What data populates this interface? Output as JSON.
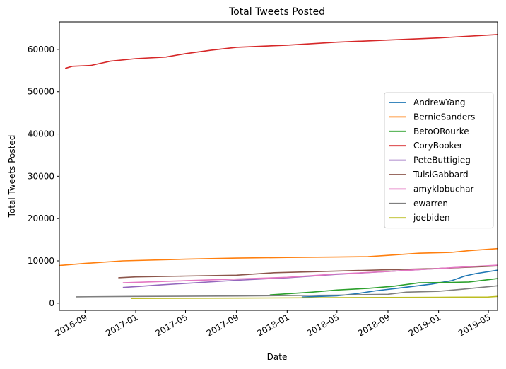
{
  "chart_data": {
    "type": "line",
    "title": "Total Tweets Posted",
    "xlabel": "Date",
    "ylabel": "Total Tweets Posted",
    "x_range": [
      "2016-07-01",
      "2019-05-23"
    ],
    "ylim": [
      -1700,
      66500
    ],
    "grid": false,
    "legend_position": "center-right",
    "x_ticks": [
      {
        "date": "2016-09-01",
        "label": "2016-09"
      },
      {
        "date": "2017-01-01",
        "label": "2017-01"
      },
      {
        "date": "2017-05-01",
        "label": "2017-05"
      },
      {
        "date": "2017-09-01",
        "label": "2017-09"
      },
      {
        "date": "2018-01-01",
        "label": "2018-01"
      },
      {
        "date": "2018-05-01",
        "label": "2018-05"
      },
      {
        "date": "2018-09-01",
        "label": "2018-09"
      },
      {
        "date": "2019-01-01",
        "label": "2019-01"
      },
      {
        "date": "2019-05-01",
        "label": "2019-05"
      }
    ],
    "y_ticks": [
      0,
      10000,
      20000,
      30000,
      40000,
      50000,
      60000
    ],
    "series": [
      {
        "name": "AndrewYang",
        "color": "#1f77b4",
        "points": [
          [
            "2018-02-05",
            1450
          ],
          [
            "2018-05-01",
            1750
          ],
          [
            "2018-06-15",
            2200
          ],
          [
            "2018-08-01",
            2900
          ],
          [
            "2018-10-01",
            3600
          ],
          [
            "2018-12-15",
            4500
          ],
          [
            "2019-02-01",
            5300
          ],
          [
            "2019-03-05",
            6400
          ],
          [
            "2019-04-01",
            7000
          ],
          [
            "2019-05-23",
            7800
          ]
        ]
      },
      {
        "name": "BernieSanders",
        "color": "#ff7f0e",
        "points": [
          [
            "2016-07-01",
            8900
          ],
          [
            "2016-09-01",
            9400
          ],
          [
            "2016-12-01",
            10000
          ],
          [
            "2017-05-01",
            10400
          ],
          [
            "2017-09-01",
            10650
          ],
          [
            "2018-01-01",
            10800
          ],
          [
            "2018-05-01",
            10900
          ],
          [
            "2018-07-15",
            11000
          ],
          [
            "2018-09-01",
            11300
          ],
          [
            "2018-11-15",
            11800
          ],
          [
            "2019-02-01",
            12000
          ],
          [
            "2019-03-15",
            12400
          ],
          [
            "2019-05-23",
            12900
          ]
        ]
      },
      {
        "name": "BetoORourke",
        "color": "#2ca02c",
        "points": [
          [
            "2017-11-20",
            1950
          ],
          [
            "2018-03-01",
            2600
          ],
          [
            "2018-05-01",
            3100
          ],
          [
            "2018-07-15",
            3500
          ],
          [
            "2018-09-15",
            4000
          ],
          [
            "2018-11-15",
            4800
          ],
          [
            "2019-02-01",
            4900
          ],
          [
            "2019-03-15",
            5000
          ],
          [
            "2019-05-23",
            5800
          ]
        ]
      },
      {
        "name": "CoryBooker",
        "color": "#d62728",
        "points": [
          [
            "2016-07-15",
            55500
          ],
          [
            "2016-08-01",
            56000
          ],
          [
            "2016-09-15",
            56200
          ],
          [
            "2016-11-01",
            57200
          ],
          [
            "2017-01-01",
            57800
          ],
          [
            "2017-03-15",
            58200
          ],
          [
            "2017-05-01",
            59000
          ],
          [
            "2017-07-01",
            59800
          ],
          [
            "2017-09-01",
            60500
          ],
          [
            "2018-01-01",
            61000
          ],
          [
            "2018-05-01",
            61700
          ],
          [
            "2018-09-01",
            62200
          ],
          [
            "2019-01-01",
            62700
          ],
          [
            "2019-05-23",
            63500
          ]
        ]
      },
      {
        "name": "PeteButtigieg",
        "color": "#9467bd",
        "points": [
          [
            "2016-12-01",
            3700
          ],
          [
            "2017-01-15",
            4000
          ],
          [
            "2017-03-01",
            4300
          ],
          [
            "2017-09-01",
            5400
          ],
          [
            "2018-01-01",
            6000
          ],
          [
            "2018-05-01",
            6800
          ],
          [
            "2018-09-01",
            7500
          ],
          [
            "2019-01-01",
            8200
          ],
          [
            "2019-05-23",
            8900
          ]
        ]
      },
      {
        "name": "TulsiGabbard",
        "color": "#8c564b",
        "points": [
          [
            "2016-11-20",
            6000
          ],
          [
            "2017-01-01",
            6200
          ],
          [
            "2017-05-01",
            6400
          ],
          [
            "2017-09-01",
            6600
          ],
          [
            "2017-12-01",
            7200
          ],
          [
            "2018-05-01",
            7600
          ],
          [
            "2018-09-01",
            7900
          ],
          [
            "2019-01-01",
            8200
          ],
          [
            "2019-05-23",
            8800
          ]
        ]
      },
      {
        "name": "amyklobuchar",
        "color": "#e377c2",
        "points": [
          [
            "2016-12-01",
            4800
          ],
          [
            "2017-05-01",
            5300
          ],
          [
            "2017-09-01",
            5700
          ],
          [
            "2018-01-01",
            6100
          ],
          [
            "2018-05-01",
            6900
          ],
          [
            "2018-09-01",
            7500
          ],
          [
            "2019-01-01",
            8200
          ],
          [
            "2019-05-23",
            9000
          ]
        ]
      },
      {
        "name": "ewarren",
        "color": "#7f7f7f",
        "points": [
          [
            "2016-08-10",
            1500
          ],
          [
            "2017-01-01",
            1600
          ],
          [
            "2017-09-01",
            1700
          ],
          [
            "2018-01-01",
            1800
          ],
          [
            "2018-05-01",
            1900
          ],
          [
            "2018-09-01",
            2100
          ],
          [
            "2018-10-15",
            2600
          ],
          [
            "2019-01-01",
            2800
          ],
          [
            "2019-03-01",
            3300
          ],
          [
            "2019-05-23",
            4100
          ]
        ]
      },
      {
        "name": "joebiden",
        "color": "#bcbd22",
        "points": [
          [
            "2016-12-20",
            1100
          ],
          [
            "2017-09-01",
            1200
          ],
          [
            "2018-05-01",
            1300
          ],
          [
            "2019-01-01",
            1400
          ],
          [
            "2019-05-01",
            1450
          ],
          [
            "2019-05-23",
            1600
          ]
        ]
      }
    ]
  }
}
